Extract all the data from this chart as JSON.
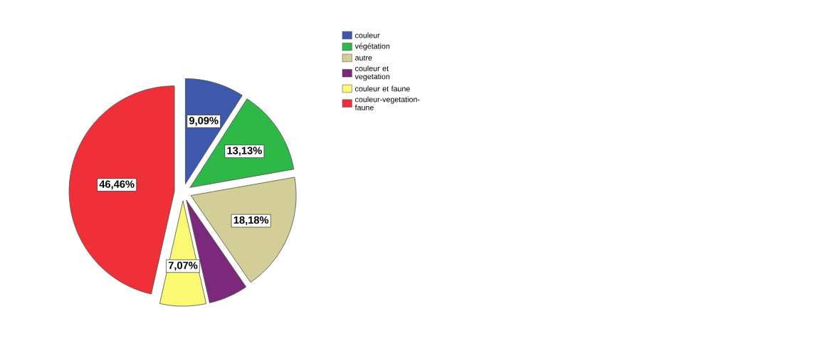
{
  "chart_data": {
    "type": "pie",
    "categories": [
      "couleur",
      "végétation",
      "autre",
      "couleur et vegetation",
      "couleur et faune",
      "couleur-vegetation-faune"
    ],
    "values": [
      9.09,
      13.13,
      18.18,
      6.06,
      7.07,
      46.46
    ],
    "value_labels": [
      "9,09%",
      "13,13%",
      "18,18%",
      null,
      "7,07%",
      "46,46%"
    ],
    "colors": [
      "#3e58ac",
      "#2eb848",
      "#d3ce97",
      "#7b287d",
      "#fbf873",
      "#ef3038"
    ],
    "legend": "top right"
  }
}
